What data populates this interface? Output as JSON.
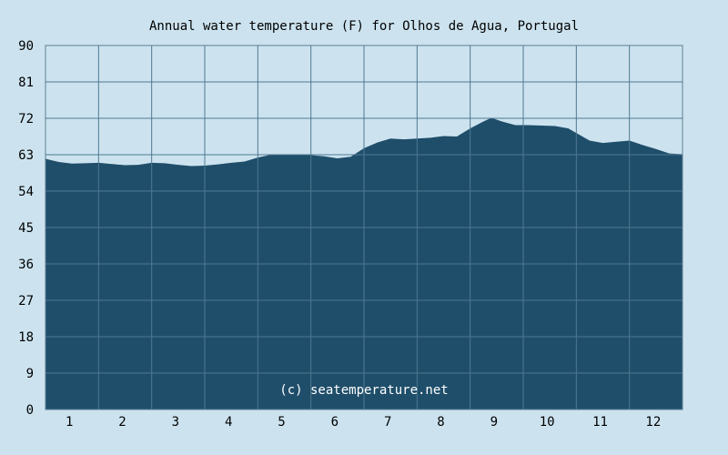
{
  "chart_data": {
    "type": "area",
    "title": "Annual water temperature (F) for Olhos de Agua, Portugal",
    "watermark": "(c) seatemperature.net",
    "xlabel": "",
    "ylabel": "",
    "x_categories": [
      "1",
      "2",
      "3",
      "4",
      "5",
      "6",
      "7",
      "8",
      "9",
      "10",
      "11",
      "12"
    ],
    "y_ticks": [
      "0",
      "9",
      "18",
      "27",
      "36",
      "45",
      "54",
      "63",
      "72",
      "81",
      "90"
    ],
    "ylim": [
      0,
      90
    ],
    "xlim": [
      0,
      12
    ],
    "grid": true,
    "colors": {
      "background": "#cce3ef",
      "fill": "#1f4e6a",
      "grid": "#4f7891",
      "frame": "#5b7d93",
      "text": "#000000"
    },
    "series": [
      {
        "x": [
          0.0,
          0.25,
          0.5,
          0.75,
          1.0,
          1.25,
          1.5,
          1.75,
          2.0,
          2.25,
          2.5,
          2.75,
          3.0,
          3.25,
          3.5,
          3.75,
          4.0,
          4.25,
          4.5,
          4.75,
          5.0,
          5.25,
          5.5,
          5.75,
          6.0,
          6.25,
          6.5,
          6.75,
          7.0,
          7.25,
          7.5,
          7.75,
          8.0,
          8.25,
          8.4,
          8.6,
          8.85,
          9.1,
          9.35,
          9.6,
          9.85,
          10.1,
          10.25,
          10.5,
          10.75,
          11.0,
          11.25,
          11.5,
          11.75,
          12.0
        ],
        "values": [
          62.0,
          61.2,
          60.8,
          60.9,
          61.0,
          60.7,
          60.4,
          60.5,
          61.0,
          60.9,
          60.5,
          60.2,
          60.3,
          60.6,
          61.0,
          61.3,
          62.3,
          63.0,
          63.1,
          63.0,
          62.9,
          62.6,
          62.1,
          62.5,
          64.6,
          66.0,
          67.0,
          66.8,
          67.0,
          67.2,
          67.6,
          67.5,
          69.5,
          71.2,
          72.1,
          71.2,
          70.3,
          70.3,
          70.2,
          70.1,
          69.5,
          67.6,
          66.5,
          65.9,
          66.2,
          66.5,
          65.4,
          64.4,
          63.3,
          63.1
        ]
      }
    ]
  }
}
